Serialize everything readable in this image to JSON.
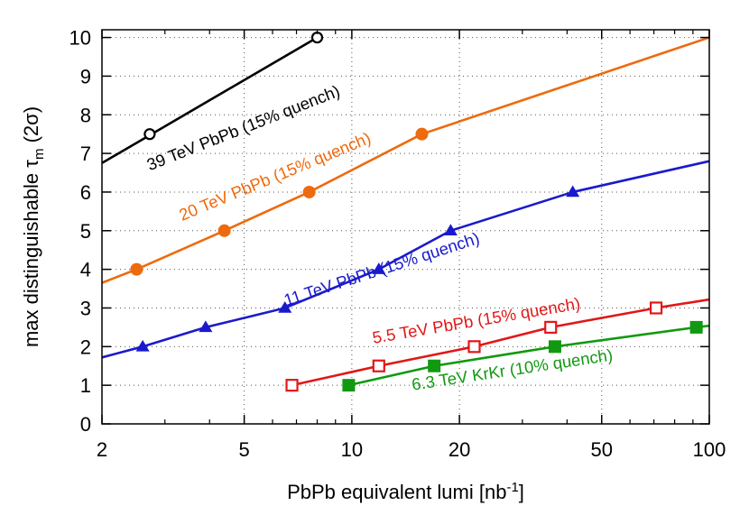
{
  "chart_data": {
    "type": "line",
    "xlabel": {
      "main": "PbPb equivalent lumi [nb",
      "sup": "-1",
      "end": "]"
    },
    "ylabel": {
      "main": "max distinguishable τ",
      "sub": "m",
      "end": " (2σ)"
    },
    "xscale": "log",
    "xlim": [
      2,
      100
    ],
    "ylim": [
      0,
      10.2
    ],
    "x_ticks": [
      2,
      5,
      10,
      20,
      50,
      100
    ],
    "x_tick_labels": [
      "2",
      "5",
      "10",
      "20",
      "50",
      "100"
    ],
    "y_ticks": [
      0,
      1,
      2,
      3,
      4,
      5,
      6,
      7,
      8,
      9,
      10
    ],
    "y_tick_labels": [
      "0",
      "1",
      "2",
      "3",
      "4",
      "5",
      "6",
      "7",
      "8",
      "9",
      "10"
    ],
    "grid": true,
    "series": [
      {
        "name": "39 TeV PbPb (15% quench)",
        "color": "#000000",
        "marker": "circle-open",
        "x": [
          2.72,
          8.0
        ],
        "y": [
          7.5,
          10.0
        ],
        "line_x": [
          2,
          8.0
        ],
        "line_y": [
          6.75,
          10.0
        ]
      },
      {
        "name": "20 TeV PbPb (15% quench)",
        "color": "#ee6a0e",
        "marker": "circle-filled",
        "x": [
          2.5,
          4.4,
          7.6,
          15.7
        ],
        "y": [
          4.0,
          5.0,
          6.0,
          7.5
        ],
        "line_x": [
          2,
          2.5,
          4.4,
          7.6,
          15.7,
          100
        ],
        "line_y": [
          3.65,
          4.0,
          5.0,
          6.0,
          7.5,
          10.0
        ]
      },
      {
        "name": "11 TeV PbPb (15% quench)",
        "color": "#1a1acc",
        "marker": "triangle-filled",
        "x": [
          2.6,
          3.9,
          6.5,
          11.9,
          18.9,
          41.5
        ],
        "y": [
          2.0,
          2.5,
          3.0,
          4.0,
          5.0,
          6.0
        ],
        "line_x": [
          2,
          2.6,
          3.9,
          6.5,
          11.9,
          18.9,
          41.5,
          100
        ],
        "line_y": [
          1.72,
          2.0,
          2.5,
          3.0,
          4.0,
          5.0,
          6.0,
          6.8
        ]
      },
      {
        "name": "5.5 TeV PbPb (15% quench)",
        "color": "#e01818",
        "marker": "square-open",
        "x": [
          6.8,
          11.9,
          22.0,
          36.0,
          71.0
        ],
        "y": [
          1.0,
          1.5,
          2.0,
          2.5,
          3.0
        ],
        "line_x": [
          6.8,
          11.9,
          22.0,
          36.0,
          71.0,
          100
        ],
        "line_y": [
          1.0,
          1.5,
          2.0,
          2.5,
          3.0,
          3.22
        ]
      },
      {
        "name": "6.3 TeV KrKr (10% quench)",
        "color": "#119911",
        "marker": "square-filled",
        "x": [
          9.8,
          17.0,
          37.0,
          92.0
        ],
        "y": [
          1.0,
          1.5,
          2.0,
          2.5
        ],
        "line_x": [
          9.8,
          17.0,
          37.0,
          92.0,
          100
        ],
        "line_y": [
          1.0,
          1.5,
          2.0,
          2.5,
          2.54
        ]
      }
    ]
  }
}
